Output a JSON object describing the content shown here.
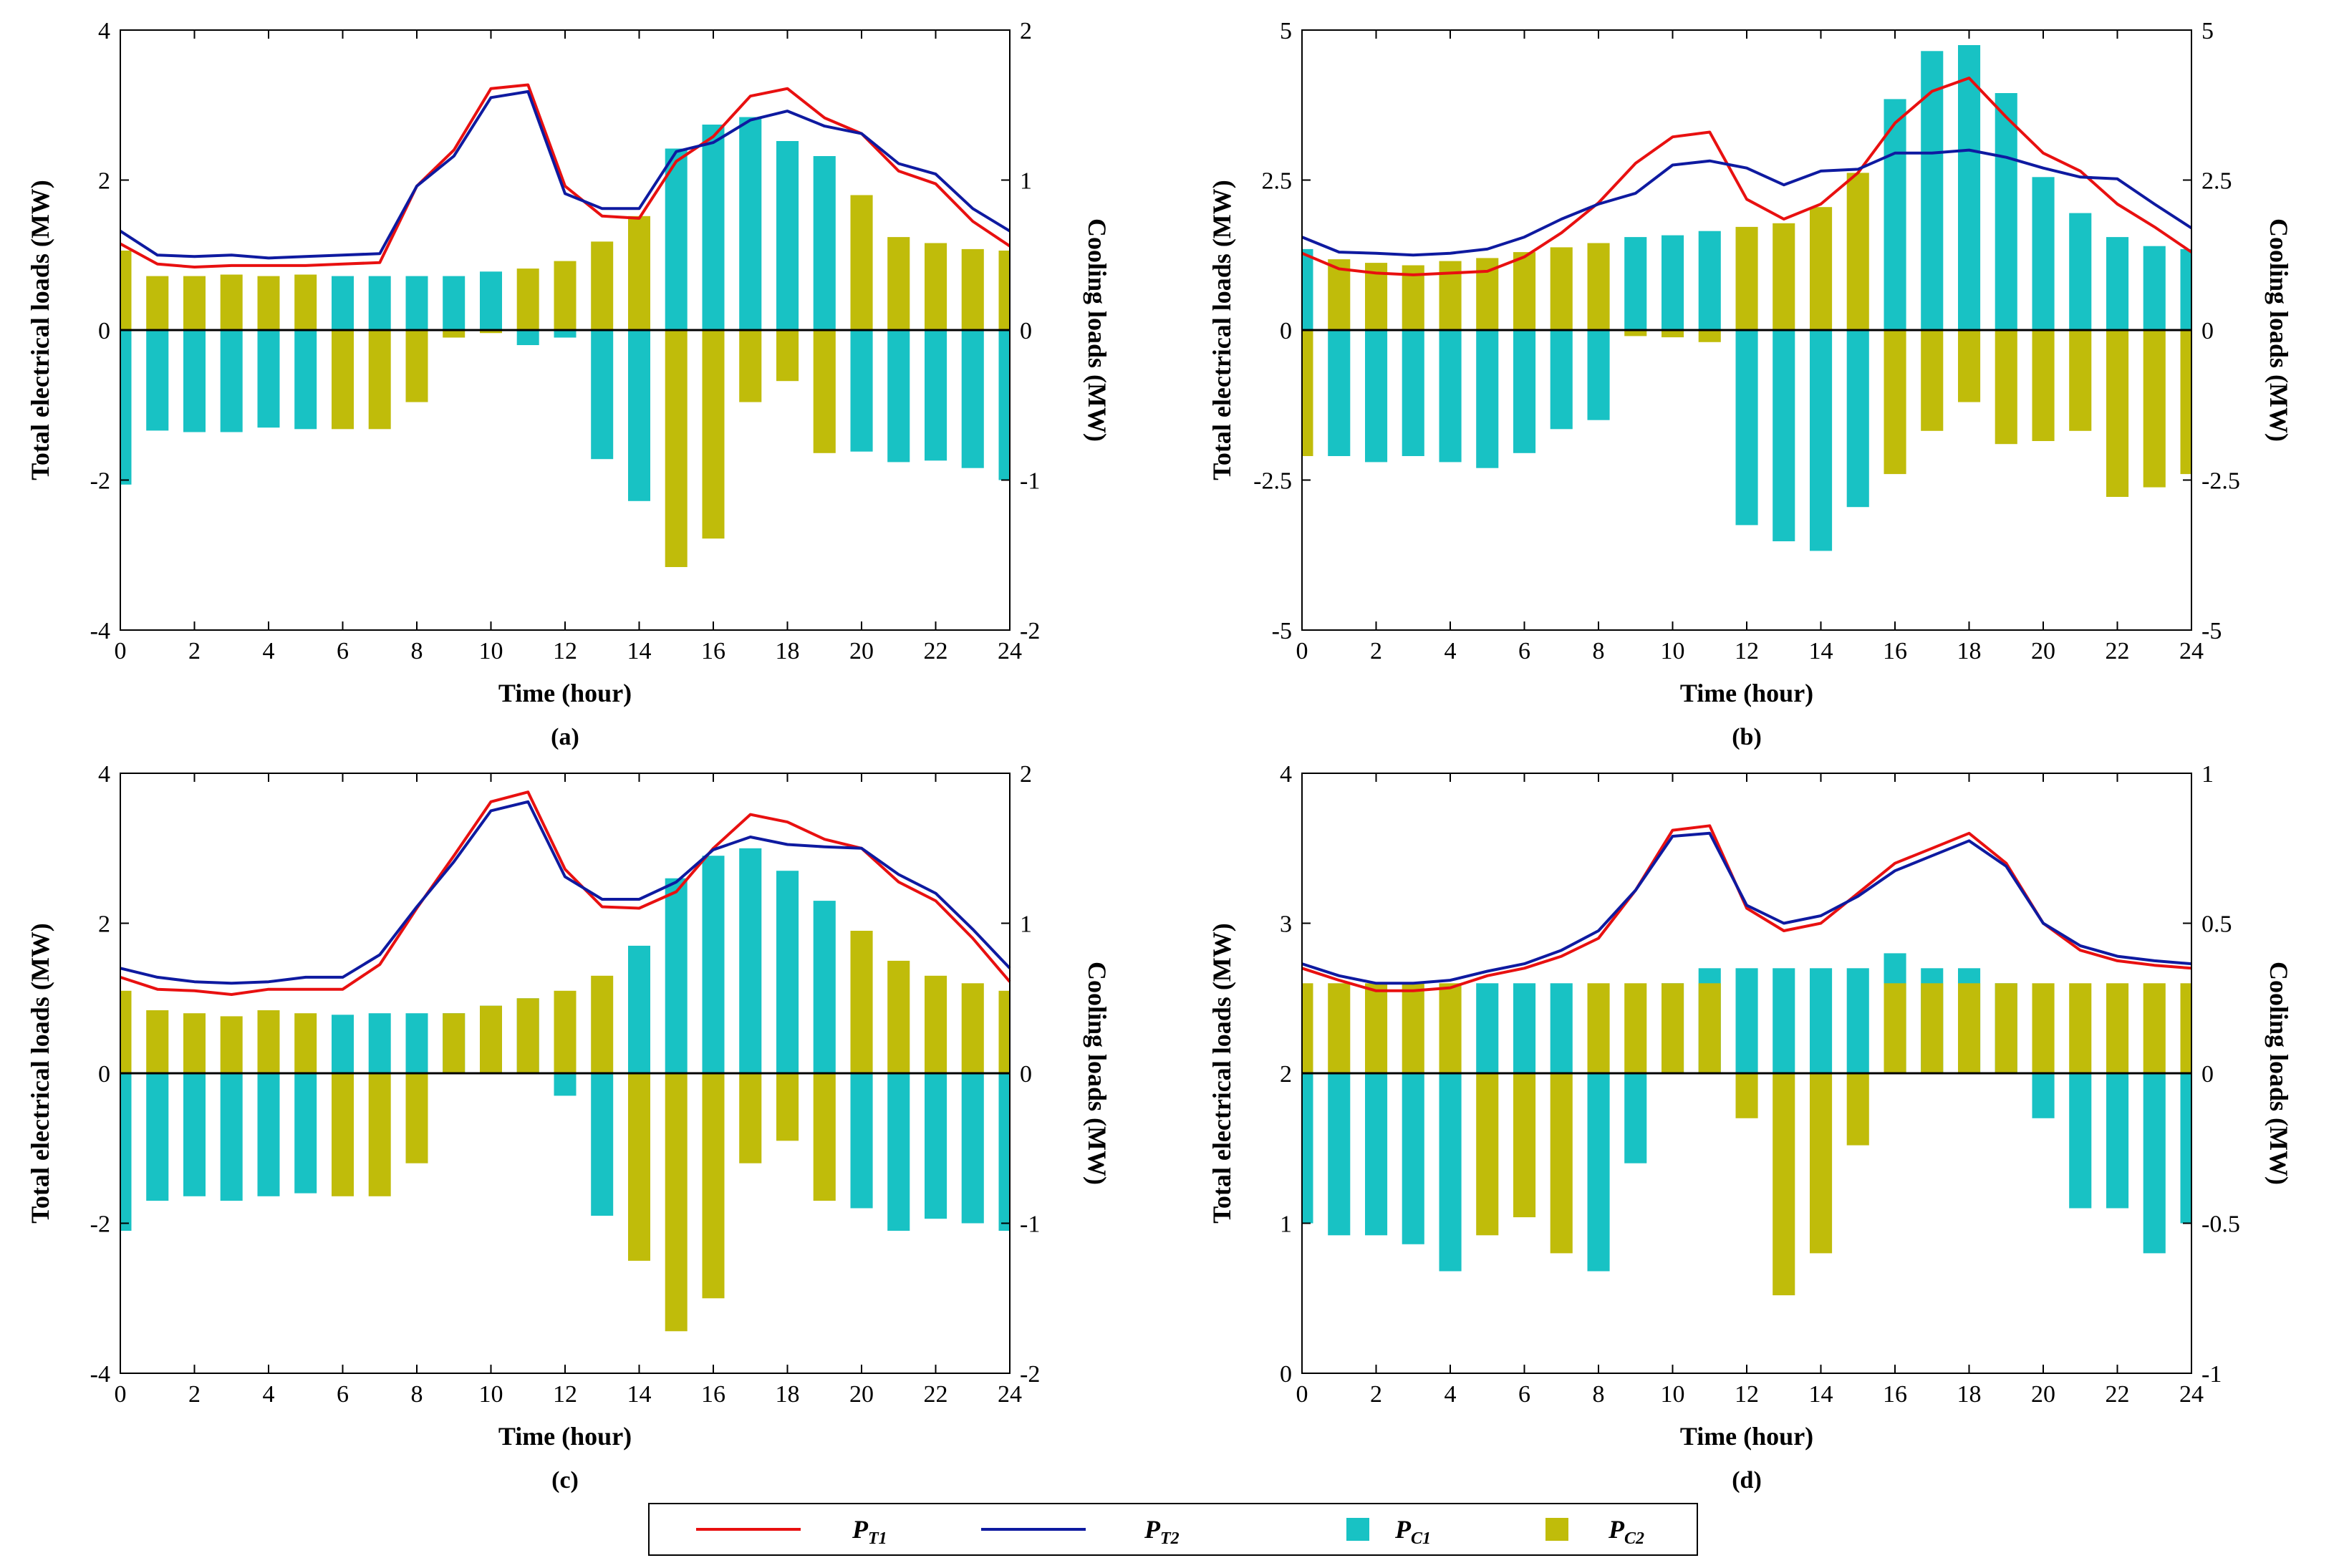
{
  "legend": {
    "items": [
      {
        "key": "PT1",
        "base": "P",
        "sub": "T1",
        "color": "#e81010",
        "kind": "line"
      },
      {
        "key": "PT2",
        "base": "P",
        "sub": "T2",
        "color": "#0e1aa0",
        "kind": "line"
      },
      {
        "key": "PC1",
        "base": "P",
        "sub": "C1",
        "color": "#18c2c4",
        "kind": "bar"
      },
      {
        "key": "PC2",
        "base": "P",
        "sub": "C2",
        "color": "#c0bc0a",
        "kind": "bar"
      }
    ]
  },
  "chart_data": [
    {
      "id": "a",
      "type": "bar+line",
      "caption": "(a)",
      "xlabel": "Time (hour)",
      "ylabel_left": "Total electrical loads (MW)",
      "ylabel_right": "Cooling loads (MW)",
      "xlim": [
        0,
        24
      ],
      "xticks": [
        0,
        2,
        4,
        6,
        8,
        10,
        12,
        14,
        16,
        18,
        20,
        22,
        24
      ],
      "ylim_left": [
        -4,
        4
      ],
      "yticks_left": [
        -4,
        -2,
        0,
        2,
        4
      ],
      "yticklabels_left": [
        "-4",
        "-2",
        "0",
        "2",
        "4"
      ],
      "ylim_right": [
        -2,
        2
      ],
      "yticks_right": [
        -2,
        -1,
        0,
        1,
        2
      ],
      "yticklabels_right": [
        "-2",
        "-1",
        "0",
        "1",
        "2"
      ],
      "series": [
        {
          "name": "PT1",
          "axis": "left",
          "x": [
            0,
            1,
            2,
            3,
            4,
            5,
            6,
            7,
            8,
            9,
            10,
            11,
            12,
            13,
            14,
            15,
            16,
            17,
            18,
            19,
            20,
            21,
            22,
            23,
            24
          ],
          "values": [
            1.15,
            0.88,
            0.84,
            0.86,
            0.86,
            0.86,
            0.88,
            0.9,
            1.92,
            2.4,
            3.22,
            3.27,
            1.92,
            1.52,
            1.49,
            2.25,
            2.58,
            3.12,
            3.22,
            2.83,
            2.62,
            2.12,
            1.95,
            1.45,
            1.12
          ]
        },
        {
          "name": "PT2",
          "axis": "left",
          "x": [
            0,
            1,
            2,
            3,
            4,
            5,
            6,
            7,
            8,
            9,
            10,
            11,
            12,
            13,
            14,
            15,
            16,
            17,
            18,
            19,
            20,
            21,
            22,
            23,
            24
          ],
          "values": [
            1.32,
            1.0,
            0.98,
            1.0,
            0.96,
            0.98,
            1.0,
            1.02,
            1.92,
            2.32,
            3.1,
            3.18,
            1.82,
            1.62,
            1.62,
            2.38,
            2.5,
            2.8,
            2.92,
            2.72,
            2.62,
            2.22,
            2.08,
            1.62,
            1.32
          ]
        },
        {
          "name": "PC1",
          "axis": "right",
          "type": "bar",
          "values": [
            -1.03,
            -0.67,
            -0.68,
            -0.68,
            -0.65,
            -0.66,
            0.36,
            0.36,
            0.36,
            0.36,
            0.39,
            -0.1,
            -0.05,
            -0.86,
            -1.14,
            1.21,
            1.37,
            1.42,
            1.26,
            1.16,
            -0.81,
            -0.88,
            -0.87,
            -0.92,
            -1.0
          ]
        },
        {
          "name": "PC2",
          "axis": "right",
          "type": "bar",
          "values": [
            0.53,
            0.36,
            0.36,
            0.37,
            0.36,
            0.37,
            -0.66,
            -0.66,
            -0.48,
            -0.05,
            -0.02,
            0.41,
            0.46,
            0.59,
            0.76,
            -1.58,
            -1.39,
            -0.48,
            -0.34,
            -0.82,
            0.9,
            0.62,
            0.58,
            0.54,
            0.53
          ]
        }
      ]
    },
    {
      "id": "b",
      "type": "bar+line",
      "caption": "(b)",
      "xlabel": "Time (hour)",
      "ylabel_left": "Total electrical loads (MW)",
      "ylabel_right": "Cooling loads (MW)",
      "xlim": [
        0,
        24
      ],
      "xticks": [
        0,
        2,
        4,
        6,
        8,
        10,
        12,
        14,
        16,
        18,
        20,
        22,
        24
      ],
      "ylim_left": [
        -5,
        5
      ],
      "yticks_left": [
        -5,
        -2.5,
        0,
        2.5,
        5
      ],
      "yticklabels_left": [
        "-5",
        "-2.5",
        "0",
        "2.5",
        "5"
      ],
      "ylim_right": [
        -5,
        5
      ],
      "yticks_right": [
        -5,
        -2.5,
        0,
        2.5,
        5
      ],
      "yticklabels_right": [
        "-5",
        "-2.5",
        "0",
        "2.5",
        "5"
      ],
      "series": [
        {
          "name": "PT1",
          "axis": "left",
          "x": [
            0,
            1,
            2,
            3,
            4,
            5,
            6,
            7,
            8,
            9,
            10,
            11,
            12,
            13,
            14,
            15,
            16,
            17,
            18,
            19,
            20,
            21,
            22,
            23,
            24
          ],
          "values": [
            1.28,
            1.02,
            0.95,
            0.92,
            0.95,
            0.98,
            1.22,
            1.62,
            2.12,
            2.78,
            3.22,
            3.3,
            2.18,
            1.85,
            2.1,
            2.62,
            3.45,
            3.98,
            4.2,
            3.55,
            2.95,
            2.65,
            2.1,
            1.72,
            1.3
          ]
        },
        {
          "name": "PT2",
          "axis": "left",
          "x": [
            0,
            1,
            2,
            3,
            4,
            5,
            6,
            7,
            8,
            9,
            10,
            11,
            12,
            13,
            14,
            15,
            16,
            17,
            18,
            19,
            20,
            21,
            22,
            23,
            24
          ],
          "values": [
            1.55,
            1.3,
            1.28,
            1.25,
            1.28,
            1.35,
            1.55,
            1.85,
            2.1,
            2.28,
            2.75,
            2.82,
            2.7,
            2.42,
            2.65,
            2.68,
            2.95,
            2.95,
            3.0,
            2.88,
            2.7,
            2.55,
            2.52,
            2.1,
            1.7
          ]
        },
        {
          "name": "PC1",
          "axis": "right",
          "type": "bar",
          "values": [
            1.35,
            -2.1,
            -2.2,
            -2.1,
            -2.2,
            -2.3,
            -2.05,
            -1.65,
            -1.5,
            1.55,
            1.58,
            1.65,
            -3.25,
            -3.52,
            -3.68,
            -2.95,
            3.85,
            4.65,
            4.75,
            3.95,
            2.55,
            1.95,
            1.55,
            1.4,
            1.35
          ]
        },
        {
          "name": "PC2",
          "axis": "right",
          "type": "bar",
          "values": [
            -2.1,
            1.18,
            1.12,
            1.08,
            1.15,
            1.2,
            1.3,
            1.38,
            1.45,
            -0.1,
            -0.12,
            -0.2,
            1.72,
            1.78,
            2.05,
            2.62,
            -2.4,
            -1.68,
            -1.2,
            -1.9,
            -1.85,
            -1.68,
            -2.78,
            -2.62,
            -2.4
          ]
        }
      ]
    },
    {
      "id": "c",
      "type": "bar+line",
      "caption": "(c)",
      "xlabel": "Time (hour)",
      "ylabel_left": "Total electrical loads (MW)",
      "ylabel_right": "Cooling loads (MW)",
      "xlim": [
        0,
        24
      ],
      "xticks": [
        0,
        2,
        4,
        6,
        8,
        10,
        12,
        14,
        16,
        18,
        20,
        22,
        24
      ],
      "ylim_left": [
        -4,
        4
      ],
      "yticks_left": [
        -4,
        -2,
        0,
        2,
        4
      ],
      "yticklabels_left": [
        "-4",
        "-2",
        "0",
        "2",
        "4"
      ],
      "ylim_right": [
        -2,
        2
      ],
      "yticks_right": [
        -2,
        -1,
        0,
        1,
        2
      ],
      "yticklabels_right": [
        "-2",
        "-1",
        "0",
        "1",
        "2"
      ],
      "series": [
        {
          "name": "PT1",
          "axis": "left",
          "x": [
            0,
            1,
            2,
            3,
            4,
            5,
            6,
            7,
            8,
            9,
            10,
            11,
            12,
            13,
            14,
            15,
            16,
            17,
            18,
            19,
            20,
            21,
            22,
            23,
            24
          ],
          "values": [
            1.28,
            1.12,
            1.1,
            1.05,
            1.12,
            1.12,
            1.12,
            1.45,
            2.2,
            2.9,
            3.62,
            3.75,
            2.72,
            2.22,
            2.2,
            2.42,
            3.0,
            3.45,
            3.35,
            3.12,
            3.0,
            2.55,
            2.3,
            1.8,
            1.22
          ]
        },
        {
          "name": "PT2",
          "axis": "left",
          "x": [
            0,
            1,
            2,
            3,
            4,
            5,
            6,
            7,
            8,
            9,
            10,
            11,
            12,
            13,
            14,
            15,
            16,
            17,
            18,
            19,
            20,
            21,
            22,
            23,
            24
          ],
          "values": [
            1.4,
            1.28,
            1.22,
            1.2,
            1.22,
            1.28,
            1.28,
            1.58,
            2.22,
            2.82,
            3.5,
            3.62,
            2.62,
            2.32,
            2.32,
            2.55,
            2.98,
            3.15,
            3.05,
            3.02,
            3.0,
            2.65,
            2.4,
            1.92,
            1.4
          ]
        },
        {
          "name": "PC1",
          "axis": "right",
          "type": "bar",
          "values": [
            -1.05,
            -0.85,
            -0.82,
            -0.85,
            -0.82,
            -0.8,
            0.39,
            0.4,
            0.4,
            0.4,
            0.45,
            0.5,
            -0.15,
            -0.95,
            0.85,
            1.3,
            1.45,
            1.5,
            1.35,
            1.15,
            -0.9,
            -1.05,
            -0.97,
            -1.0,
            -1.05
          ]
        },
        {
          "name": "PC2",
          "axis": "right",
          "type": "bar",
          "values": [
            0.55,
            0.42,
            0.4,
            0.38,
            0.42,
            0.4,
            -0.82,
            -0.82,
            -0.6,
            0.4,
            0.45,
            0.5,
            0.55,
            0.65,
            -1.25,
            -1.72,
            -1.5,
            -0.6,
            -0.45,
            -0.85,
            0.95,
            0.75,
            0.65,
            0.6,
            0.55
          ]
        }
      ]
    },
    {
      "id": "d",
      "type": "bar+line",
      "caption": "(d)",
      "xlabel": "Time (hour)",
      "ylabel_left": "Total electrical loads (MW)",
      "ylabel_right": "Cooling loads (MW)",
      "xlim": [
        0,
        24
      ],
      "xticks": [
        0,
        2,
        4,
        6,
        8,
        10,
        12,
        14,
        16,
        18,
        20,
        22,
        24
      ],
      "ylim_left": [
        0,
        4
      ],
      "yticks_left": [
        0,
        1,
        2,
        3,
        4
      ],
      "yticklabels_left": [
        "0",
        "1",
        "2",
        "3",
        "4"
      ],
      "ylim_right": [
        -1,
        1
      ],
      "yticks_right": [
        -1,
        -0.5,
        0,
        0.5,
        1
      ],
      "yticklabels_right": [
        "-1",
        "-0.5",
        "0",
        "0.5",
        "1"
      ],
      "series": [
        {
          "name": "PT1",
          "axis": "left",
          "x": [
            0,
            1,
            2,
            3,
            4,
            5,
            6,
            7,
            8,
            9,
            10,
            11,
            12,
            13,
            14,
            15,
            16,
            17,
            18,
            19,
            20,
            21,
            22,
            23,
            24
          ],
          "values": [
            2.7,
            2.62,
            2.55,
            2.55,
            2.57,
            2.65,
            2.7,
            2.78,
            2.9,
            3.22,
            3.62,
            3.65,
            3.1,
            2.95,
            3.0,
            3.2,
            3.4,
            3.5,
            3.6,
            3.4,
            3.0,
            2.82,
            2.75,
            2.72,
            2.7
          ]
        },
        {
          "name": "PT2",
          "axis": "left",
          "x": [
            0,
            1,
            2,
            3,
            4,
            5,
            6,
            7,
            8,
            9,
            10,
            11,
            12,
            13,
            14,
            15,
            16,
            17,
            18,
            19,
            20,
            21,
            22,
            23,
            24
          ],
          "values": [
            2.73,
            2.65,
            2.6,
            2.6,
            2.62,
            2.68,
            2.73,
            2.82,
            2.95,
            3.22,
            3.58,
            3.6,
            3.12,
            3.0,
            3.05,
            3.18,
            3.35,
            3.45,
            3.55,
            3.38,
            3.0,
            2.85,
            2.78,
            2.75,
            2.73
          ]
        },
        {
          "name": "PC1",
          "axis": "right",
          "type": "bar",
          "values": [
            -0.5,
            -0.54,
            -0.54,
            -0.57,
            -0.66,
            0.3,
            0.3,
            0.3,
            -0.66,
            -0.3,
            0.3,
            0.35,
            0.35,
            0.35,
            0.35,
            0.35,
            0.4,
            0.35,
            0.35,
            0.3,
            -0.15,
            -0.45,
            -0.45,
            -0.6,
            -0.5
          ]
        },
        {
          "name": "PC2",
          "axis": "right",
          "type": "bar",
          "values": [
            0.3,
            0.3,
            0.3,
            0.3,
            0.3,
            -0.54,
            -0.48,
            -0.6,
            0.3,
            0.3,
            0.3,
            0.3,
            -0.15,
            -0.74,
            -0.6,
            -0.24,
            0.3,
            0.3,
            0.3,
            0.3,
            0.3,
            0.3,
            0.3,
            0.3,
            0.3
          ]
        }
      ]
    }
  ]
}
